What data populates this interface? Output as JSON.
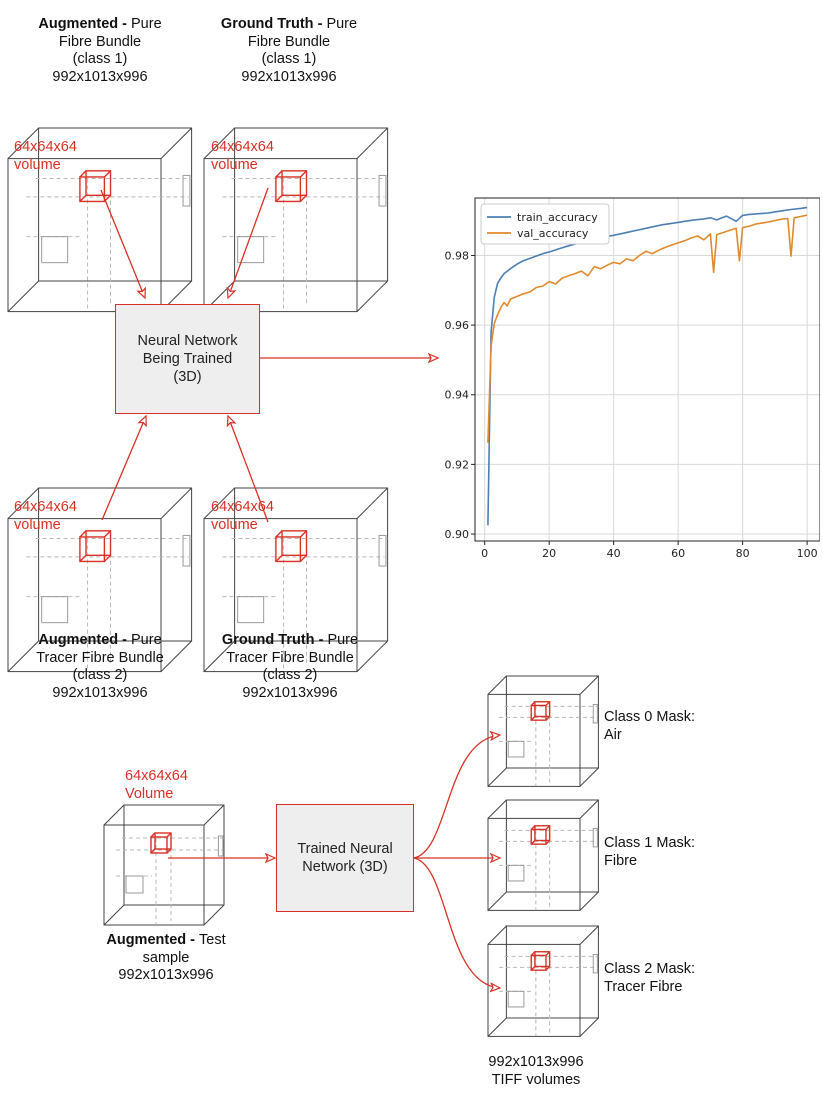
{
  "captions": {
    "top_left": {
      "bold": "Augmented - ",
      "rest": "Pure",
      "lines": [
        "Fibre Bundle",
        "(class 1)",
        "992x1013x996"
      ]
    },
    "top_right": {
      "bold": "Ground Truth - ",
      "rest": "Pure",
      "lines": [
        "Fibre Bundle",
        "(class 1)",
        "992x1013x996"
      ]
    },
    "bottom_left": {
      "bold": "Augmented - ",
      "rest": "Pure",
      "lines": [
        "Tracer Fibre Bundle",
        "(class 2)",
        "992x1013x996"
      ]
    },
    "bottom_right": {
      "bold": "Ground Truth - ",
      "rest": "Pure",
      "lines": [
        "Tracer Fibre Bundle",
        "(class 2)",
        "992x1013x996"
      ]
    },
    "test": {
      "bold": "Augmented - ",
      "rest": "Test",
      "lines": [
        "sample",
        "992x1013x996"
      ]
    },
    "outputs": {
      "lines": [
        "992x1013x996",
        "TIFF volumes"
      ]
    }
  },
  "volume_labels": {
    "training": [
      "64x64x64",
      "volume"
    ],
    "test": [
      "64x64x64",
      "Volume"
    ]
  },
  "training_box": {
    "lines": [
      "Neural Network",
      "Being Trained",
      "(3D)"
    ]
  },
  "trained_box": {
    "lines": [
      "Trained Neural",
      "Network (3D)"
    ]
  },
  "masks": [
    {
      "lines": [
        "Class 0 Mask:",
        "Air"
      ]
    },
    {
      "lines": [
        "Class 1 Mask:",
        "Fibre"
      ]
    },
    {
      "lines": [
        "Class 2 Mask:",
        "Tracer Fibre"
      ]
    }
  ],
  "colors": {
    "accent": "#d93025",
    "box_fill": "#eeeeee",
    "train": "#4c7fb3",
    "val": "#e08a2b",
    "cube": "#444444",
    "dash": "#b8b8b8"
  },
  "chart_data": {
    "type": "line",
    "title": "",
    "xlabel": "",
    "ylabel": "",
    "xlim": [
      -3,
      104
    ],
    "ylim": [
      0.898,
      0.9965
    ],
    "x_ticks": [
      0,
      20,
      40,
      60,
      80,
      100
    ],
    "y_ticks": [
      0.9,
      0.92,
      0.94,
      0.96,
      0.98
    ],
    "grid": true,
    "legend_position": "top-left",
    "series": [
      {
        "name": "train_accuracy",
        "x": [
          1,
          2,
          3,
          4,
          5,
          6,
          8,
          10,
          12,
          15,
          18,
          20,
          25,
          30,
          35,
          40,
          45,
          50,
          55,
          60,
          62,
          65,
          68,
          70,
          72,
          74,
          75,
          78,
          80,
          82,
          85,
          88,
          90,
          92,
          95,
          98,
          100
        ],
        "y": [
          0.9025,
          0.958,
          0.968,
          0.972,
          0.9735,
          0.9748,
          0.9762,
          0.9775,
          0.9785,
          0.9795,
          0.9805,
          0.981,
          0.9825,
          0.9838,
          0.985,
          0.9858,
          0.9868,
          0.9878,
          0.9888,
          0.9895,
          0.9898,
          0.9902,
          0.9905,
          0.9908,
          0.9902,
          0.991,
          0.9913,
          0.9898,
          0.9915,
          0.9918,
          0.992,
          0.9922,
          0.9925,
          0.9928,
          0.9932,
          0.9935,
          0.9938
        ]
      },
      {
        "name": "val_accuracy",
        "x": [
          1,
          2,
          3,
          4,
          5,
          6,
          7,
          8,
          10,
          12,
          14,
          16,
          18,
          20,
          22,
          24,
          26,
          28,
          30,
          32,
          34,
          36,
          38,
          40,
          42,
          44,
          46,
          48,
          50,
          52,
          54,
          56,
          58,
          60,
          62,
          64,
          66,
          68,
          70,
          71,
          72,
          74,
          76,
          78,
          79,
          80,
          82,
          84,
          86,
          88,
          90,
          92,
          94,
          95,
          96,
          98,
          100
        ],
        "y": [
          0.9262,
          0.954,
          0.9605,
          0.963,
          0.965,
          0.9665,
          0.9655,
          0.9675,
          0.9682,
          0.969,
          0.9695,
          0.9708,
          0.9712,
          0.9725,
          0.9718,
          0.9735,
          0.9742,
          0.9748,
          0.9755,
          0.9742,
          0.9768,
          0.9762,
          0.9772,
          0.978,
          0.9776,
          0.979,
          0.9785,
          0.98,
          0.9812,
          0.9805,
          0.9815,
          0.9823,
          0.983,
          0.9836,
          0.9842,
          0.985,
          0.9856,
          0.9845,
          0.9862,
          0.9752,
          0.986,
          0.9866,
          0.9872,
          0.9878,
          0.9785,
          0.988,
          0.9884,
          0.989,
          0.9893,
          0.9896,
          0.99,
          0.9904,
          0.9906,
          0.9798,
          0.9908,
          0.9912,
          0.9916
        ]
      }
    ]
  }
}
